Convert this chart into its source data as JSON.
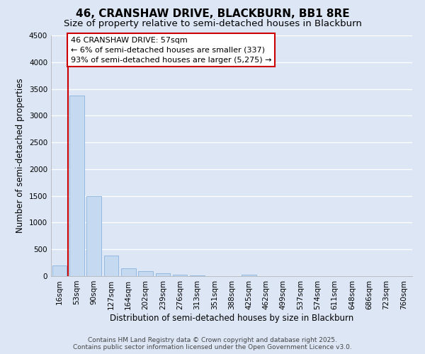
{
  "title": "46, CRANSHAW DRIVE, BLACKBURN, BB1 8RE",
  "subtitle": "Size of property relative to semi-detached houses in Blackburn",
  "xlabel": "Distribution of semi-detached houses by size in Blackburn",
  "ylabel": "Number of semi-detached properties",
  "annotation_title": "46 CRANSHAW DRIVE: 57sqm",
  "annotation_line1": "← 6% of semi-detached houses are smaller (337)",
  "annotation_line2": "93% of semi-detached houses are larger (5,275) →",
  "footer1": "Contains HM Land Registry data © Crown copyright and database right 2025.",
  "footer2": "Contains public sector information licensed under the Open Government Licence v3.0.",
  "categories": [
    "16sqm",
    "53sqm",
    "90sqm",
    "127sqm",
    "164sqm",
    "202sqm",
    "239sqm",
    "276sqm",
    "313sqm",
    "351sqm",
    "388sqm",
    "425sqm",
    "462sqm",
    "499sqm",
    "537sqm",
    "574sqm",
    "611sqm",
    "648sqm",
    "686sqm",
    "723sqm",
    "760sqm"
  ],
  "values": [
    200,
    3380,
    1500,
    390,
    150,
    90,
    50,
    30,
    10,
    5,
    3,
    25,
    0,
    0,
    0,
    0,
    0,
    0,
    0,
    0,
    0
  ],
  "bar_color": "#c5d9f1",
  "bar_edge_color": "#7aabdb",
  "ylim": [
    0,
    4500
  ],
  "yticks": [
    0,
    500,
    1000,
    1500,
    2000,
    2500,
    3000,
    3500,
    4000,
    4500
  ],
  "background_color": "#dce6f5",
  "plot_bg_color": "#dce6f5",
  "grid_color": "#ffffff",
  "annotation_box_color": "#ffffff",
  "annotation_box_edge": "#cc0000",
  "vline_color": "#cc0000",
  "vline_x_index": 1,
  "title_fontsize": 11,
  "subtitle_fontsize": 9.5,
  "label_fontsize": 8.5,
  "tick_fontsize": 7.5,
  "annotation_fontsize": 8,
  "footer_fontsize": 6.5
}
